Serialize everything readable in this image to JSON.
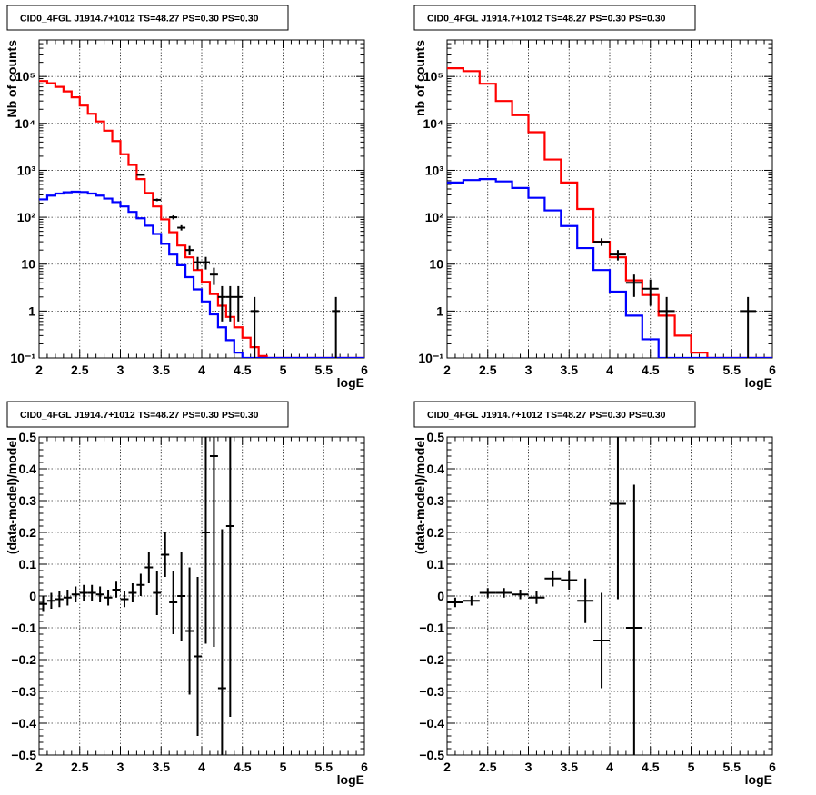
{
  "chart_data": [
    {
      "panel": "top-left",
      "type": "line",
      "title": "CID0_4FGL J1914.7+1012 TS=48.27 PS=0.30 PS=0.30",
      "xlabel": "logE",
      "ylabel": "Nb of counts",
      "xlim": [
        2,
        6
      ],
      "ylim": [
        0.1,
        600000
      ],
      "yscale": "log",
      "grid": true,
      "xticks": [
        "2",
        "2.5",
        "3",
        "3.5",
        "4",
        "4.5",
        "5",
        "5.5",
        "6"
      ],
      "yticks": [
        {
          "value": 0.1,
          "label": "10⁻¹"
        },
        {
          "value": 1,
          "label": "1"
        },
        {
          "value": 10,
          "label": "10"
        },
        {
          "value": 100,
          "label": "10²"
        },
        {
          "value": 1000,
          "label": "10³"
        },
        {
          "value": 10000,
          "label": "10⁴"
        },
        {
          "value": 100000,
          "label": "10⁵"
        }
      ],
      "bin_width": 0.1,
      "series": [
        {
          "color": "#ff0000",
          "kind": "step",
          "x": [
            2.0,
            2.1,
            2.2,
            2.3,
            2.4,
            2.5,
            2.6,
            2.7,
            2.8,
            2.9,
            3.0,
            3.1,
            3.2,
            3.3,
            3.4,
            3.5,
            3.6,
            3.7,
            3.8,
            3.9,
            4.0,
            4.1,
            4.2,
            4.3,
            4.4,
            4.5,
            4.6,
            4.7,
            4.8,
            4.9,
            5.0,
            5.1,
            5.2,
            5.3,
            5.4,
            5.5,
            5.6,
            5.7,
            5.8,
            5.9
          ],
          "values": [
            80000,
            72000,
            60000,
            48000,
            36000,
            24000,
            16000,
            11000,
            7000,
            4200,
            2200,
            1300,
            650,
            330,
            170,
            90,
            48,
            25,
            14,
            7.5,
            4.2,
            2.3,
            1.3,
            0.75,
            0.45,
            0.27,
            0.17,
            0.11,
            0.1,
            0.1,
            0.1,
            0.1,
            0.1,
            0.1,
            0.1,
            0.1,
            0.1,
            0.1,
            0.1,
            0.1
          ]
        },
        {
          "color": "#0000ff",
          "kind": "step",
          "x": [
            2.0,
            2.1,
            2.2,
            2.3,
            2.4,
            2.5,
            2.6,
            2.7,
            2.8,
            2.9,
            3.0,
            3.1,
            3.2,
            3.3,
            3.4,
            3.5,
            3.6,
            3.7,
            3.8,
            3.9,
            4.0,
            4.1,
            4.2,
            4.3,
            4.4,
            4.5,
            4.6,
            4.7,
            4.8,
            4.9,
            5.0,
            5.1,
            5.2,
            5.3,
            5.4,
            5.5,
            5.6,
            5.7,
            5.8,
            5.9
          ],
          "values": [
            240,
            290,
            320,
            340,
            350,
            345,
            320,
            290,
            250,
            210,
            170,
            130,
            95,
            66,
            44,
            27,
            16,
            9.5,
            5.3,
            2.9,
            1.6,
            0.85,
            0.45,
            0.24,
            0.13,
            0.1,
            0.1,
            0.1,
            0.1,
            0.1,
            0.1,
            0.1,
            0.1,
            0.1,
            0.1,
            0.1,
            0.1,
            0.1,
            0.1,
            0.1
          ]
        },
        {
          "color": "#000000",
          "kind": "points",
          "x": [
            3.25,
            3.45,
            3.65,
            3.75,
            3.85,
            3.95,
            4.05,
            4.15,
            4.25,
            4.35,
            4.45,
            4.65,
            5.65
          ],
          "values": [
            800,
            235,
            100,
            60,
            20,
            11,
            11,
            6,
            2,
            2,
            2,
            1,
            1
          ],
          "err_lo": [
            28,
            15,
            10,
            7.7,
            4.5,
            3.3,
            3.3,
            2.4,
            1.4,
            1.4,
            1.4,
            0.9,
            0.9
          ],
          "err_hi": [
            28,
            15,
            10,
            7.7,
            4.5,
            3.3,
            3.3,
            2.4,
            1.4,
            1.4,
            1.4,
            1.0,
            1.0
          ]
        }
      ]
    },
    {
      "panel": "top-right",
      "type": "line",
      "title": "CID0_4FGL J1914.7+1012 TS=48.27 PS=0.30 PS=0.30",
      "xlabel": "logE",
      "ylabel": "nb of counts",
      "xlim": [
        2,
        6
      ],
      "ylim": [
        0.1,
        600000
      ],
      "yscale": "log",
      "grid": true,
      "xticks": [
        "2",
        "2.5",
        "3",
        "3.5",
        "4",
        "4.5",
        "5",
        "5.5",
        "6"
      ],
      "yticks": [
        {
          "value": 0.1,
          "label": "10⁻¹"
        },
        {
          "value": 1,
          "label": "1"
        },
        {
          "value": 10,
          "label": "10"
        },
        {
          "value": 100,
          "label": "10²"
        },
        {
          "value": 1000,
          "label": "10³"
        },
        {
          "value": 10000,
          "label": "10⁴"
        },
        {
          "value": 100000,
          "label": "10⁵"
        }
      ],
      "bin_width": 0.2,
      "series": [
        {
          "color": "#ff0000",
          "kind": "step",
          "x": [
            2.0,
            2.2,
            2.4,
            2.6,
            2.8,
            3.0,
            3.2,
            3.4,
            3.6,
            3.8,
            4.0,
            4.2,
            4.4,
            4.6,
            4.8,
            5.0,
            5.2,
            5.4,
            5.6,
            5.8
          ],
          "values": [
            150000,
            130000,
            70000,
            30000,
            15000,
            6500,
            1700,
            550,
            150,
            30,
            14,
            4.5,
            2.2,
            0.8,
            0.3,
            0.13,
            0.1,
            0.1,
            0.1,
            0.1
          ]
        },
        {
          "color": "#0000ff",
          "kind": "step",
          "x": [
            2.0,
            2.2,
            2.4,
            2.6,
            2.8,
            3.0,
            3.2,
            3.4,
            3.6,
            3.8,
            4.0,
            4.2,
            4.4,
            4.6,
            4.8,
            5.0,
            5.2,
            5.4,
            5.6,
            5.8
          ],
          "values": [
            550,
            620,
            650,
            580,
            420,
            260,
            140,
            65,
            22,
            7.5,
            2.6,
            0.8,
            0.25,
            0.1,
            0.1,
            0.1,
            0.1,
            0.1,
            0.1,
            0.1
          ]
        },
        {
          "color": "#000000",
          "kind": "points",
          "x": [
            3.9,
            4.1,
            4.3,
            4.5,
            4.7,
            5.7
          ],
          "values": [
            30,
            16,
            4,
            3,
            1,
            1
          ],
          "err_lo": [
            5.5,
            4,
            2,
            1.7,
            0.9,
            0.9
          ],
          "err_hi": [
            5.5,
            4,
            2,
            1.7,
            1.0,
            1.0
          ]
        }
      ]
    },
    {
      "panel": "bottom-left",
      "type": "scatter",
      "title": "CID0_4FGL J1914.7+1012 TS=48.27 PS=0.30 PS=0.30",
      "xlabel": "logE",
      "ylabel": "(data-model)/model",
      "xlim": [
        2,
        6
      ],
      "ylim": [
        -0.5,
        0.5
      ],
      "grid": true,
      "xticks": [
        "2",
        "2.5",
        "3",
        "3.5",
        "4",
        "4.5",
        "5",
        "5.5",
        "6"
      ],
      "yticks": [
        "−0.5",
        "−0.4",
        "−0.3",
        "−0.2",
        "−0.1",
        "0",
        "0.1",
        "0.2",
        "0.3",
        "0.4",
        "0.5"
      ],
      "bin_width": 0.1,
      "series": [
        {
          "color": "#000000",
          "x": [
            2.05,
            2.15,
            2.25,
            2.35,
            2.45,
            2.55,
            2.65,
            2.75,
            2.85,
            2.95,
            3.05,
            3.15,
            3.25,
            3.35,
            3.45,
            3.55,
            3.65,
            3.75,
            3.85,
            3.95,
            4.05,
            4.15,
            4.25,
            4.35
          ],
          "values": [
            -0.025,
            -0.015,
            -0.01,
            -0.005,
            0.005,
            0.01,
            0.01,
            0.005,
            -0.005,
            0.02,
            -0.01,
            0.01,
            0.035,
            0.09,
            0.01,
            0.13,
            -0.02,
            0.0,
            -0.11,
            -0.19,
            0.2,
            0.44,
            -0.29,
            0.22
          ],
          "err": [
            0.025,
            0.025,
            0.025,
            0.025,
            0.025,
            0.025,
            0.025,
            0.025,
            0.025,
            0.025,
            0.025,
            0.03,
            0.035,
            0.05,
            0.07,
            0.07,
            0.1,
            0.14,
            0.2,
            0.25,
            0.35,
            0.6,
            0.5,
            0.6
          ]
        }
      ]
    },
    {
      "panel": "bottom-right",
      "type": "scatter",
      "title": "CID0_4FGL J1914.7+1012 TS=48.27 PS=0.30 PS=0.30",
      "xlabel": "logE",
      "ylabel": "(data-model)/model",
      "xlim": [
        2,
        6
      ],
      "ylim": [
        -0.5,
        0.5
      ],
      "grid": true,
      "xticks": [
        "2",
        "2.5",
        "3",
        "3.5",
        "4",
        "4.5",
        "5",
        "5.5",
        "6"
      ],
      "yticks": [
        "−0.5",
        "−0.4",
        "−0.3",
        "−0.2",
        "−0.1",
        "0",
        "0.1",
        "0.2",
        "0.3",
        "0.4",
        "0.5"
      ],
      "bin_width": 0.2,
      "series": [
        {
          "color": "#000000",
          "x": [
            2.1,
            2.3,
            2.5,
            2.7,
            2.9,
            3.1,
            3.3,
            3.5,
            3.7,
            3.9,
            4.1,
            4.3
          ],
          "values": [
            -0.02,
            -0.015,
            0.01,
            0.01,
            0.005,
            -0.005,
            0.055,
            0.05,
            -0.015,
            -0.14,
            0.29,
            -0.1
          ],
          "err": [
            0.015,
            0.015,
            0.015,
            0.015,
            0.015,
            0.02,
            0.025,
            0.03,
            0.07,
            0.15,
            0.3,
            0.45
          ]
        }
      ]
    }
  ]
}
